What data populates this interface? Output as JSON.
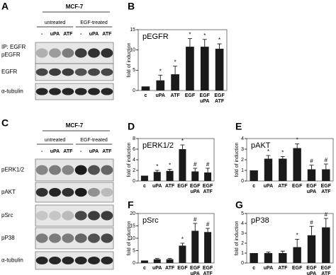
{
  "blots": [
    {
      "panel": "A",
      "header": "MCF-7",
      "groups": [
        "untreated",
        "EGF-treated"
      ],
      "lanes": [
        "-",
        "uPA",
        "ATF",
        "-",
        "uPA",
        "ATF"
      ],
      "ip": "IP: EGFR",
      "rows": [
        "pEGFR",
        "EGFR",
        "α-tubulin"
      ]
    },
    {
      "panel": "C",
      "header": "MCF-7",
      "groups": [
        "untreated",
        "EGF-treated"
      ],
      "lanes": [
        "-",
        "uPA",
        "ATF",
        "-",
        "uPA",
        "ATF"
      ],
      "rows": [
        "pERK1/2",
        "pAKT",
        "pSrc",
        "pP38",
        "α-tubulin"
      ]
    }
  ],
  "chart_data": [
    {
      "type": "bar",
      "panel": "B",
      "title": "pEGFR",
      "y_label": "fold of induction",
      "color": "#1a1a1a",
      "categories": [
        [
          "c"
        ],
        [
          "uPA"
        ],
        [
          "ATF"
        ],
        [
          "EGF"
        ],
        [
          "EGF",
          "uPA"
        ],
        [
          "EGF",
          "ATF"
        ]
      ],
      "values": [
        1,
        2.5,
        4,
        10.8,
        10.8,
        10.3
      ],
      "errors": [
        null,
        1.3,
        2,
        2,
        1.8,
        1.2
      ],
      "significance": [
        null,
        "*",
        "*",
        "*",
        "*",
        "*"
      ],
      "ylim": [
        0,
        15
      ],
      "yticks": [
        0,
        5,
        10,
        15
      ]
    },
    {
      "type": "bar",
      "panel": "D",
      "title": "pERK1/2",
      "y_label": "fold of induction",
      "color": "#1a1a1a",
      "categories": [
        [
          "c"
        ],
        [
          "uPA"
        ],
        [
          "ATF"
        ],
        [
          "EGF"
        ],
        [
          "EGF",
          "uPA"
        ],
        [
          "EGF",
          "ATF"
        ]
      ],
      "values": [
        1,
        1.7,
        1.9,
        6,
        1.8,
        1.6
      ],
      "errors": [
        null,
        0.3,
        0.3,
        0.8,
        0.6,
        0.8
      ],
      "significance": [
        null,
        "*",
        "*",
        "*",
        "#",
        "#"
      ],
      "ylim": [
        0,
        8
      ],
      "yticks": [
        0,
        2,
        4,
        6,
        8
      ]
    },
    {
      "type": "bar",
      "panel": "E",
      "title": "pAKT",
      "y_label": "fold of induction",
      "color": "#1a1a1a",
      "categories": [
        [
          "c"
        ],
        [
          "uPA"
        ],
        [
          "ATF"
        ],
        [
          "EGF"
        ],
        [
          "EGF",
          "uPA"
        ],
        [
          "EGF",
          "ATF"
        ]
      ],
      "values": [
        1,
        2.1,
        2.1,
        3.1,
        1.1,
        1.1
      ],
      "errors": [
        null,
        0.3,
        0.2,
        0.4,
        0.4,
        0.5
      ],
      "significance": [
        null,
        "*",
        "*",
        "*",
        "#",
        "#"
      ],
      "ylim": [
        0,
        4
      ],
      "yticks": [
        0,
        1,
        2,
        3,
        4
      ]
    },
    {
      "type": "bar",
      "panel": "F",
      "title": "pSrc",
      "y_label": "fold of induction",
      "color": "#1a1a1a",
      "categories": [
        [
          "c"
        ],
        [
          "uPA"
        ],
        [
          "ATF"
        ],
        [
          "EGF"
        ],
        [
          "EGF",
          "uPA"
        ],
        [
          "EGF",
          "ATF"
        ]
      ],
      "values": [
        1,
        1.5,
        1.5,
        7,
        13,
        12.5
      ],
      "errors": [
        null,
        0.3,
        0.3,
        1,
        3,
        1.5
      ],
      "significance": [
        null,
        null,
        null,
        "*",
        "#",
        "#"
      ],
      "ylim": [
        0,
        20
      ],
      "yticks": [
        0,
        5,
        10,
        15,
        20
      ]
    },
    {
      "type": "bar",
      "panel": "G",
      "title": "pP38",
      "y_label": "fold of induction",
      "color": "#1a1a1a",
      "categories": [
        [
          "c"
        ],
        [
          "uPA"
        ],
        [
          "ATF"
        ],
        [
          "EGF"
        ],
        [
          "EGF",
          "uPA"
        ],
        [
          "EGF",
          "ATF"
        ]
      ],
      "values": [
        1,
        1,
        1,
        1.6,
        2.8,
        3.6
      ],
      "errors": [
        null,
        0.1,
        0.2,
        0.8,
        0.9,
        0.9
      ],
      "significance": [
        null,
        null,
        null,
        "*",
        "#",
        "#"
      ],
      "ylim": [
        0,
        5
      ],
      "yticks": [
        0,
        1,
        2,
        3,
        4,
        5
      ]
    }
  ]
}
